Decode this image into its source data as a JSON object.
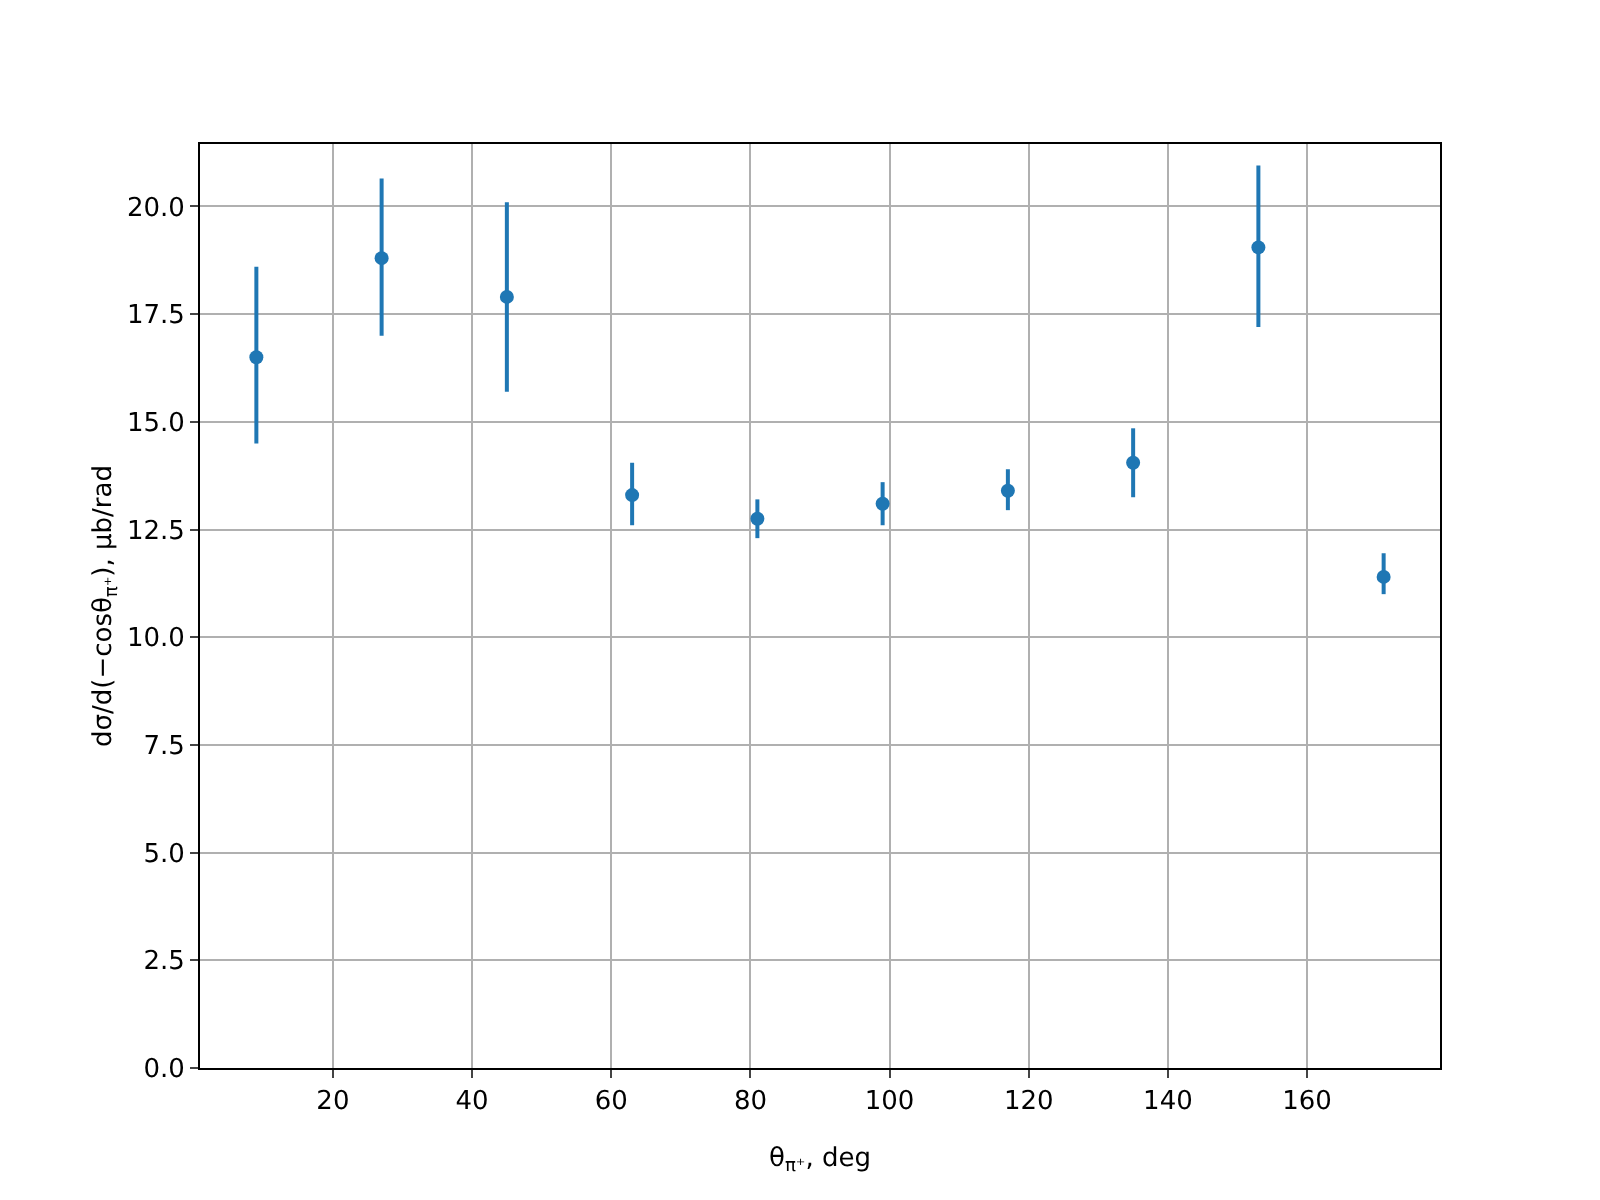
{
  "chart_data": {
    "type": "scatter",
    "xlabel": "θ$_{π⁺}$, deg",
    "ylabel": "dσ/d(−cosθ$_{π⁺}$), μb/rad",
    "x": [
      9,
      27,
      45,
      63,
      81,
      99,
      117,
      135,
      153,
      171
    ],
    "values": [
      16.5,
      18.8,
      17.9,
      13.3,
      12.75,
      13.1,
      13.4,
      14.05,
      19.05,
      11.4
    ],
    "errors": [
      [
        14.5,
        18.6
      ],
      [
        17.0,
        20.65
      ],
      [
        15.7,
        20.1
      ],
      [
        12.6,
        14.05
      ],
      [
        12.3,
        13.2
      ],
      [
        12.6,
        13.6
      ],
      [
        12.95,
        13.9
      ],
      [
        13.25,
        14.85
      ],
      [
        17.2,
        20.95
      ],
      [
        11.0,
        11.95
      ]
    ],
    "color": "#1f77b4",
    "marker": "circle",
    "grid": true,
    "xlim": [
      0.9,
      179.1
    ],
    "xticks": [
      20,
      40,
      60,
      80,
      100,
      120,
      140,
      160
    ],
    "ylim": [
      0,
      21.45
    ],
    "yticks": [
      {
        "value": 0,
        "label": "0.0"
      },
      {
        "value": 2.5,
        "label": "2.5"
      },
      {
        "value": 5,
        "label": "5.0"
      },
      {
        "value": 7.5,
        "label": "7.5"
      },
      {
        "value": 10,
        "label": "10.0"
      },
      {
        "value": 12.5,
        "label": "12.5"
      },
      {
        "value": 15,
        "label": "15.0"
      },
      {
        "value": 17.5,
        "label": "17.5"
      },
      {
        "value": 20,
        "label": "20.0"
      }
    ]
  }
}
